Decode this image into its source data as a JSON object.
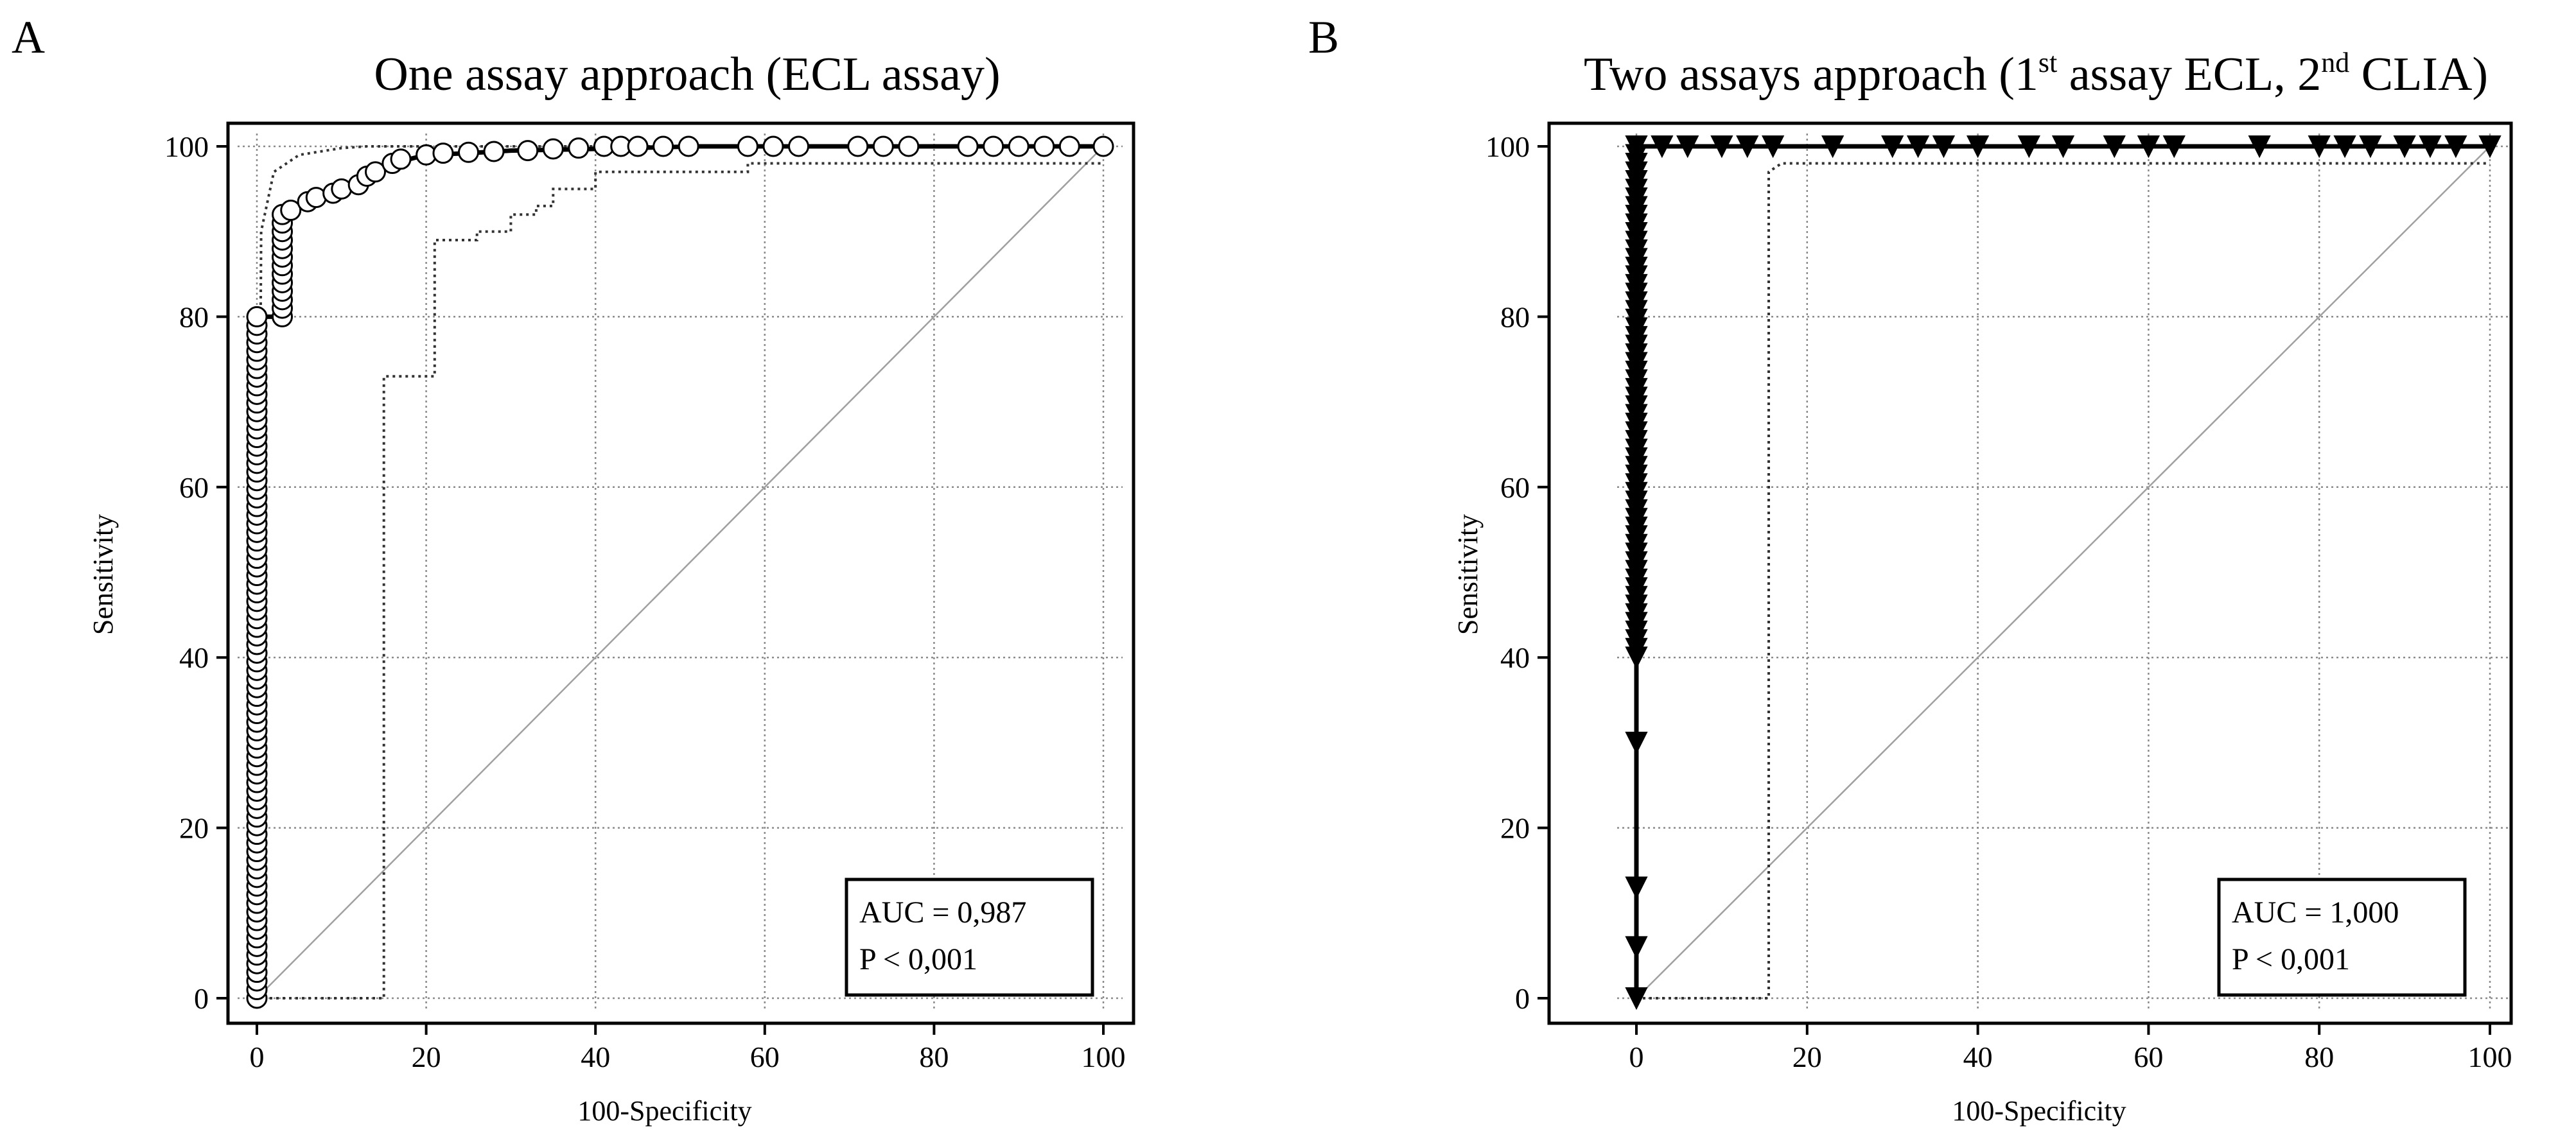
{
  "chart_data": [
    {
      "type": "line",
      "panel_label": "A",
      "title": "One assay approach (ECL assay)",
      "xlabel": "100-Specificity",
      "ylabel": "Sensitivity",
      "xlim": [
        0,
        100
      ],
      "ylim": [
        0,
        100
      ],
      "x_ticks": [
        "0",
        "20",
        "40",
        "60",
        "80",
        "100"
      ],
      "y_ticks": [
        "0",
        "20",
        "40",
        "60",
        "80",
        "100"
      ],
      "grid": true,
      "stats": {
        "auc": "AUC = 0,987",
        "p": "P < 0,001"
      },
      "stats_position": "bottom-right",
      "marker": "open-circle",
      "series": [
        {
          "role": "roc-curve",
          "x": [
            0,
            0,
            3,
            3,
            6,
            9,
            12,
            16,
            20,
            25,
            30,
            40,
            52,
            60,
            100
          ],
          "y": [
            0,
            80,
            80,
            92,
            94,
            95,
            96,
            98,
            99,
            99.2,
            99.5,
            99.7,
            100,
            100,
            100
          ]
        },
        {
          "role": "upper-confidence-bound",
          "x": [
            0,
            0.5,
            2,
            5,
            10,
            13,
            100
          ],
          "y": [
            0,
            90,
            97,
            99,
            99.8,
            100,
            100
          ]
        },
        {
          "role": "lower-confidence-bound",
          "x": [
            0,
            15,
            15,
            21,
            21,
            26,
            26,
            30,
            30,
            33,
            33,
            35,
            35,
            40,
            40,
            58,
            58,
            100
          ],
          "y": [
            0,
            0,
            73,
            73,
            89,
            89,
            90,
            90,
            92,
            92,
            93,
            93,
            95,
            95,
            97,
            97,
            98,
            98
          ]
        },
        {
          "role": "reference-diagonal",
          "x": [
            0,
            100
          ],
          "y": [
            0,
            100
          ]
        }
      ],
      "markers_at": {
        "vertical_x0": {
          "x": 0,
          "y_from": 0,
          "y_to": 80,
          "count": 80
        },
        "vertical_x3": {
          "x": 3,
          "y_from": 80,
          "y_to": 92,
          "count": 13
        },
        "points": [
          [
            4,
            92.5
          ],
          [
            6,
            93.5
          ],
          [
            7,
            94
          ],
          [
            9,
            94.5
          ],
          [
            10,
            95
          ],
          [
            12,
            95.5
          ],
          [
            13,
            96.5
          ],
          [
            14,
            97
          ],
          [
            16,
            98
          ],
          [
            17,
            98.5
          ],
          [
            20,
            99
          ],
          [
            22,
            99.2
          ],
          [
            25,
            99.3
          ],
          [
            28,
            99.4
          ],
          [
            32,
            99.5
          ],
          [
            35,
            99.7
          ],
          [
            38,
            99.8
          ],
          [
            41,
            100
          ],
          [
            43,
            100
          ],
          [
            45,
            100
          ],
          [
            48,
            100
          ],
          [
            51,
            100
          ],
          [
            58,
            100
          ],
          [
            61,
            100
          ],
          [
            64,
            100
          ],
          [
            71,
            100
          ],
          [
            74,
            100
          ],
          [
            77,
            100
          ],
          [
            84,
            100
          ],
          [
            87,
            100
          ],
          [
            90,
            100
          ],
          [
            93,
            100
          ],
          [
            96,
            100
          ],
          [
            100,
            100
          ]
        ]
      }
    },
    {
      "type": "line",
      "panel_label": "B",
      "title": "Two assays approach (1st assay ECL, 2nd CLIA)",
      "title_parts": [
        "Two  assays approach (1",
        "st",
        " assay ECL, 2",
        "nd",
        " CLIA)"
      ],
      "xlabel": "100-Specificity",
      "ylabel": "Sensitivity",
      "xlim": [
        0,
        100
      ],
      "ylim": [
        0,
        100
      ],
      "x_ticks": [
        "0",
        "20",
        "40",
        "60",
        "80",
        "100"
      ],
      "y_ticks": [
        "0",
        "20",
        "40",
        "60",
        "80",
        "100"
      ],
      "grid": true,
      "stats": {
        "auc": "AUC = 1,000",
        "p": "P < 0,001"
      },
      "stats_position": "bottom-right",
      "marker": "filled-down-triangle",
      "series": [
        {
          "role": "roc-curve",
          "x": [
            0,
            0,
            100
          ],
          "y": [
            0,
            100,
            100
          ]
        },
        {
          "role": "lower-confidence-bound",
          "x": [
            0,
            15.5,
            15.5,
            17,
            100
          ],
          "y": [
            0,
            0,
            97,
            98,
            98
          ]
        },
        {
          "role": "reference-diagonal",
          "x": [
            0,
            100
          ],
          "y": [
            0,
            100
          ]
        }
      ],
      "markers_at": {
        "vertical_x0": {
          "x": 0,
          "y_from": 40,
          "y_to": 100,
          "count": 60
        },
        "points": [
          [
            0,
            0
          ],
          [
            0,
            6
          ],
          [
            0,
            13
          ],
          [
            0,
            30
          ],
          [
            3,
            100
          ],
          [
            6,
            100
          ],
          [
            10,
            100
          ],
          [
            13,
            100
          ],
          [
            16,
            100
          ],
          [
            23,
            100
          ],
          [
            30,
            100
          ],
          [
            33,
            100
          ],
          [
            36,
            100
          ],
          [
            40,
            100
          ],
          [
            46,
            100
          ],
          [
            50,
            100
          ],
          [
            56,
            100
          ],
          [
            60,
            100
          ],
          [
            63,
            100
          ],
          [
            73,
            100
          ],
          [
            80,
            100
          ],
          [
            83,
            100
          ],
          [
            86,
            100
          ],
          [
            90,
            100
          ],
          [
            93,
            100
          ],
          [
            96,
            100
          ],
          [
            100,
            100
          ]
        ]
      }
    }
  ]
}
